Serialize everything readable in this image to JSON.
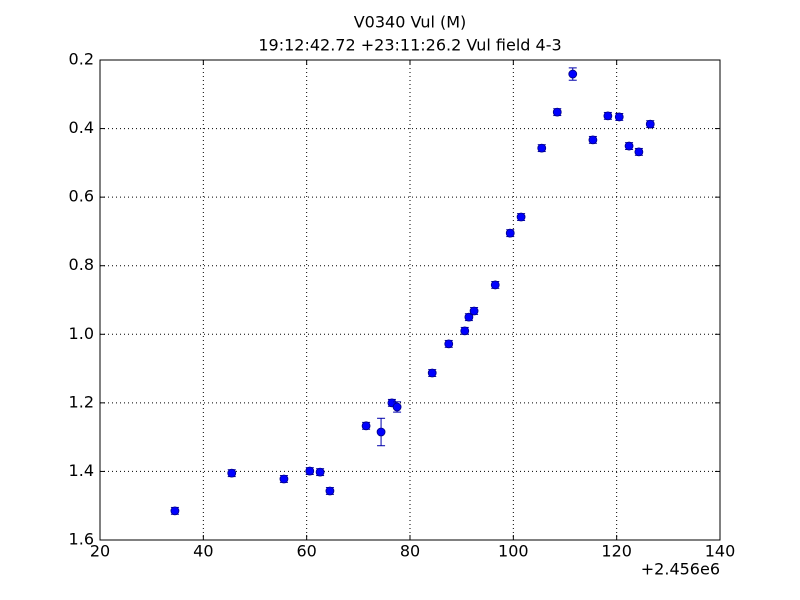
{
  "chart_data": {
    "type": "scatter",
    "title": "V0340 Vul (M)",
    "subtitle": "19:12:42.72 +23:11:26.2 Vul field 4-3",
    "x_offset_label": "+2.456e6",
    "series": [
      {
        "color": "#0000ff",
        "x": [
          34.5,
          45.5,
          55.6,
          60.6,
          62.6,
          64.5,
          71.5,
          74.4,
          76.5,
          77.5,
          84.3,
          87.5,
          90.6,
          91.4,
          92.4,
          96.5,
          99.4,
          101.5,
          105.5,
          108.5,
          111.5,
          115.4,
          118.3,
          120.5,
          122.4,
          124.3,
          126.5
        ],
        "values": [
          1.515,
          1.405,
          1.422,
          1.399,
          1.402,
          1.457,
          1.267,
          1.285,
          1.2,
          1.212,
          1.113,
          1.028,
          0.99,
          0.95,
          0.932,
          0.856,
          0.705,
          0.658,
          0.457,
          0.352,
          0.241,
          0.433,
          0.363,
          0.366,
          0.451,
          0.468,
          0.387
        ],
        "errors": [
          0.01,
          0.01,
          0.01,
          0.01,
          0.01,
          0.01,
          0.01,
          0.04,
          0.01,
          0.015,
          0.01,
          0.01,
          0.01,
          0.01,
          0.01,
          0.01,
          0.01,
          0.01,
          0.01,
          0.01,
          0.018,
          0.01,
          0.01,
          0.01,
          0.01,
          0.01,
          0.01
        ]
      }
    ],
    "xlim": [
      20,
      140
    ],
    "xticks": [
      20,
      40,
      60,
      80,
      100,
      120,
      140
    ],
    "ylim": [
      0.2,
      1.6
    ],
    "yticks": [
      0.2,
      0.4,
      0.6,
      0.8,
      {
        "value": 1,
        "label": "1.0"
      },
      1.2,
      1.4,
      1.6
    ],
    "invert_y": true,
    "grid": true
  }
}
